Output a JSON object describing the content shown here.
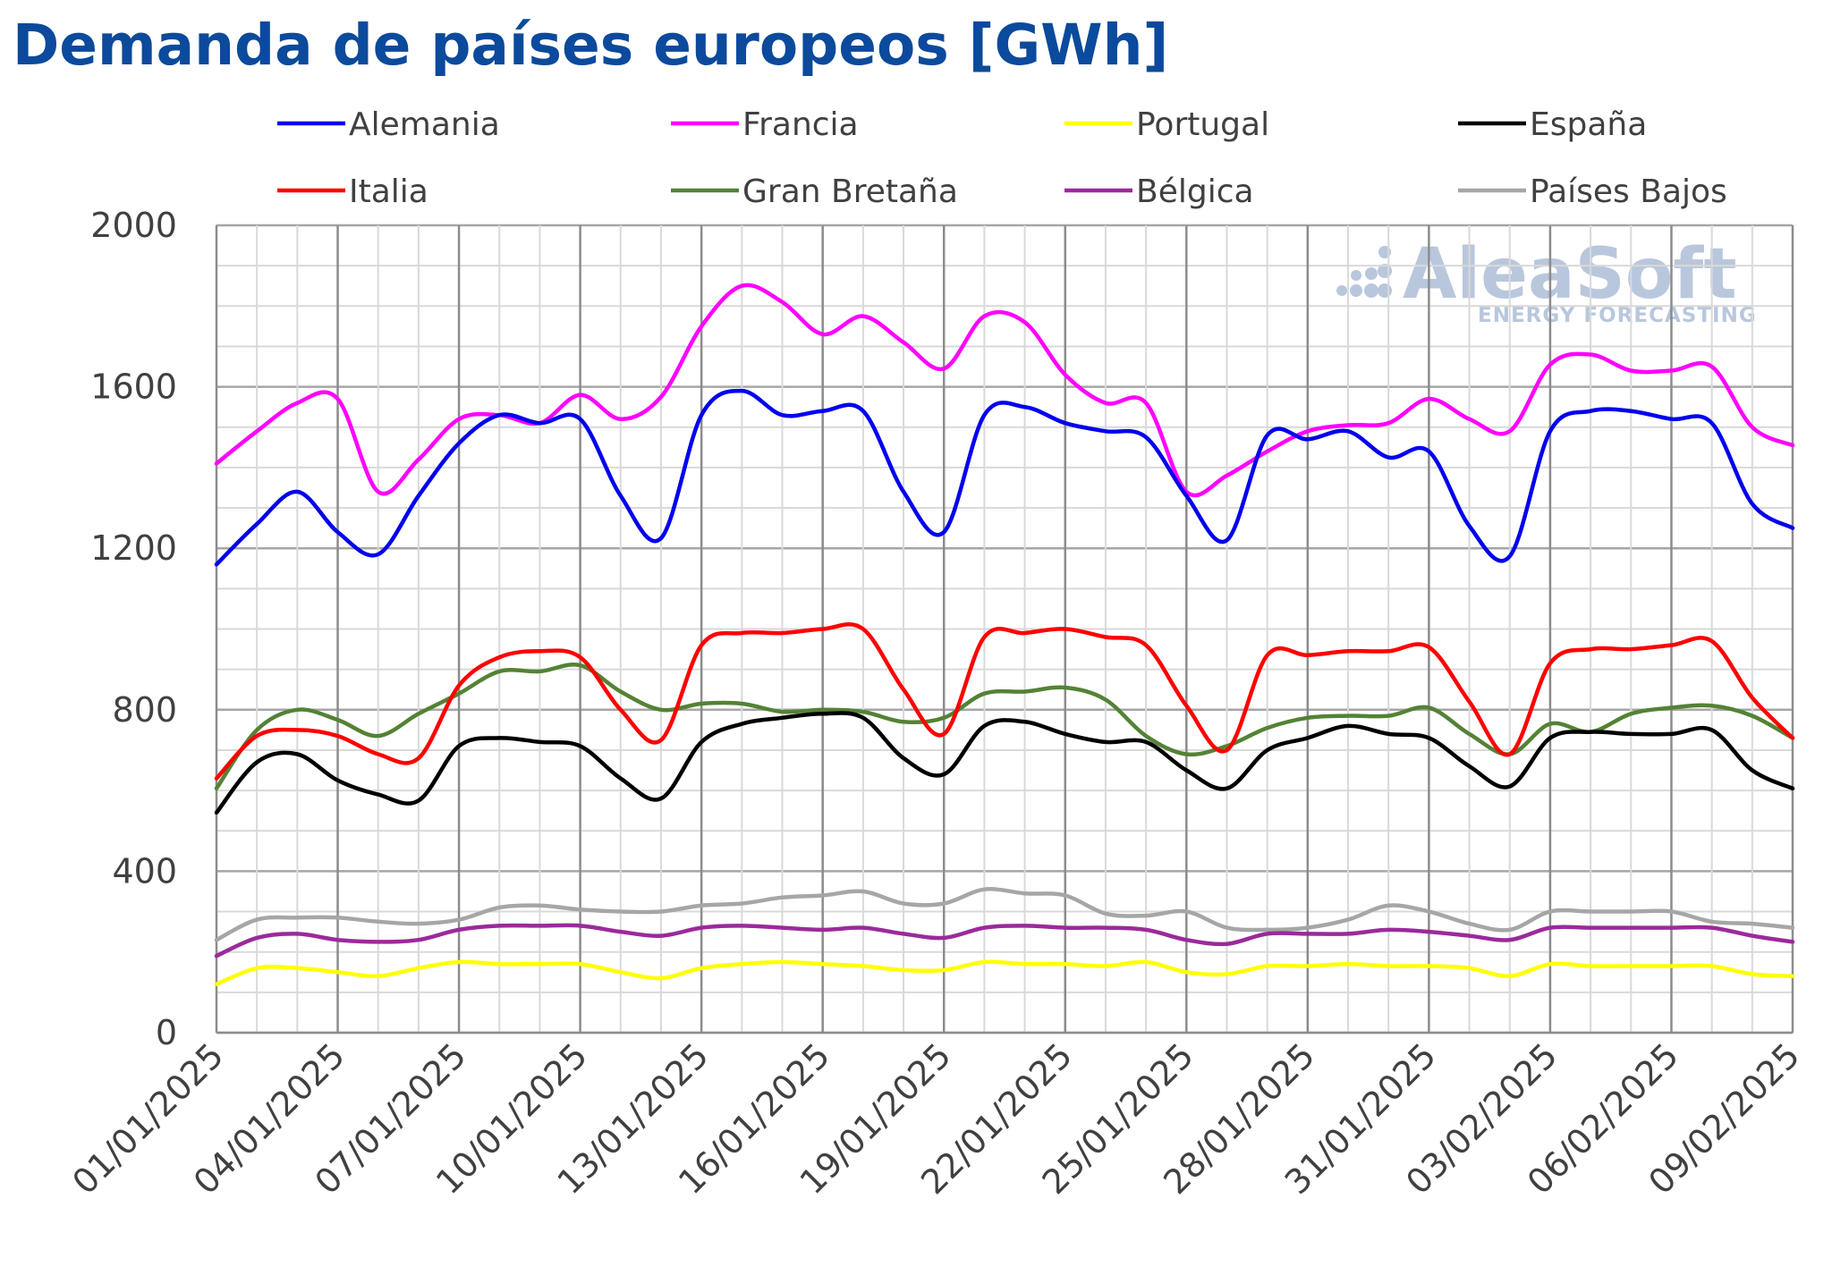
{
  "chart_data": {
    "type": "line",
    "title": "Demanda de países europeos [GWh]",
    "xlabel": "",
    "ylabel": "",
    "ylim": [
      0,
      2000
    ],
    "yticks": [
      0,
      400,
      800,
      1200,
      1600,
      2000
    ],
    "grid": true,
    "legend_position": "top",
    "x": [
      "01/01/2025",
      "02/01/2025",
      "03/01/2025",
      "04/01/2025",
      "05/01/2025",
      "06/01/2025",
      "07/01/2025",
      "08/01/2025",
      "09/01/2025",
      "10/01/2025",
      "11/01/2025",
      "12/01/2025",
      "13/01/2025",
      "14/01/2025",
      "15/01/2025",
      "16/01/2025",
      "17/01/2025",
      "18/01/2025",
      "19/01/2025",
      "20/01/2025",
      "21/01/2025",
      "22/01/2025",
      "23/01/2025",
      "24/01/2025",
      "25/01/2025",
      "26/01/2025",
      "27/01/2025",
      "28/01/2025",
      "29/01/2025",
      "30/01/2025",
      "31/01/2025",
      "01/02/2025",
      "02/02/2025",
      "03/02/2025",
      "04/02/2025",
      "05/02/2025",
      "06/02/2025",
      "07/02/2025",
      "08/02/2025",
      "09/02/2025"
    ],
    "x_tick_labels": [
      "01/01/2025",
      "04/01/2025",
      "07/01/2025",
      "10/01/2025",
      "13/01/2025",
      "16/01/2025",
      "19/01/2025",
      "22/01/2025",
      "25/01/2025",
      "28/01/2025",
      "31/01/2025",
      "03/02/2025",
      "06/02/2025",
      "09/02/2025"
    ],
    "series": [
      {
        "name": "Alemania",
        "color": "#0000ee",
        "values": [
          1160,
          1260,
          1340,
          1240,
          1185,
          1330,
          1460,
          1530,
          1510,
          1520,
          1330,
          1225,
          1530,
          1590,
          1530,
          1540,
          1540,
          1340,
          1240,
          1530,
          1550,
          1510,
          1490,
          1475,
          1330,
          1220,
          1480,
          1470,
          1490,
          1425,
          1440,
          1255,
          1180,
          1490,
          1540,
          1540,
          1520,
          1510,
          1310,
          1250
        ]
      },
      {
        "name": "Francia",
        "color": "#ff00ff",
        "values": [
          1410,
          1490,
          1560,
          1570,
          1340,
          1420,
          1520,
          1530,
          1510,
          1580,
          1520,
          1575,
          1750,
          1850,
          1810,
          1730,
          1775,
          1710,
          1645,
          1775,
          1760,
          1630,
          1560,
          1560,
          1340,
          1380,
          1440,
          1490,
          1505,
          1510,
          1570,
          1520,
          1490,
          1655,
          1680,
          1640,
          1640,
          1650,
          1500,
          1455
        ]
      },
      {
        "name": "Portugal",
        "color": "#ffff00",
        "values": [
          120,
          160,
          160,
          150,
          140,
          160,
          175,
          170,
          170,
          170,
          150,
          135,
          160,
          170,
          175,
          170,
          165,
          155,
          155,
          175,
          170,
          170,
          165,
          175,
          150,
          145,
          165,
          165,
          170,
          165,
          165,
          160,
          140,
          170,
          165,
          165,
          165,
          165,
          145,
          140
        ]
      },
      {
        "name": "España",
        "color": "#000000",
        "values": [
          545,
          670,
          690,
          625,
          590,
          575,
          710,
          730,
          720,
          710,
          630,
          580,
          720,
          765,
          780,
          790,
          780,
          680,
          640,
          760,
          770,
          740,
          720,
          720,
          650,
          605,
          700,
          730,
          760,
          740,
          730,
          660,
          610,
          730,
          745,
          740,
          740,
          750,
          650,
          605
        ]
      },
      {
        "name": "Italia",
        "color": "#ff0000",
        "values": [
          630,
          735,
          750,
          735,
          690,
          680,
          860,
          930,
          945,
          930,
          800,
          725,
          960,
          990,
          990,
          1000,
          1000,
          850,
          740,
          980,
          990,
          1000,
          980,
          960,
          810,
          700,
          935,
          935,
          945,
          945,
          955,
          820,
          690,
          915,
          950,
          950,
          960,
          970,
          830,
          730
        ]
      },
      {
        "name": "Gran Bretaña",
        "color": "#548235",
        "values": [
          605,
          750,
          800,
          775,
          735,
          790,
          840,
          895,
          895,
          910,
          845,
          800,
          815,
          815,
          795,
          800,
          795,
          770,
          780,
          840,
          845,
          855,
          825,
          735,
          690,
          710,
          755,
          780,
          785,
          785,
          805,
          740,
          690,
          765,
          745,
          790,
          805,
          810,
          785,
          730
        ]
      },
      {
        "name": "Bélgica",
        "color": "#9b2a9b",
        "values": [
          190,
          235,
          245,
          230,
          225,
          230,
          255,
          265,
          265,
          265,
          250,
          240,
          260,
          265,
          260,
          255,
          260,
          245,
          235,
          260,
          265,
          260,
          260,
          255,
          230,
          220,
          245,
          245,
          245,
          255,
          250,
          240,
          230,
          260,
          260,
          260,
          260,
          260,
          240,
          225
        ]
      },
      {
        "name": "Países Bajos",
        "color": "#a6a6a6",
        "values": [
          230,
          280,
          285,
          285,
          275,
          270,
          280,
          310,
          315,
          305,
          300,
          300,
          315,
          320,
          335,
          340,
          350,
          320,
          320,
          355,
          345,
          340,
          295,
          290,
          300,
          260,
          255,
          260,
          280,
          315,
          300,
          270,
          255,
          300,
          300,
          300,
          300,
          275,
          270,
          260
        ]
      }
    ]
  },
  "watermark": {
    "name": "AleaSoft",
    "tagline": "ENERGY FORECASTING"
  }
}
